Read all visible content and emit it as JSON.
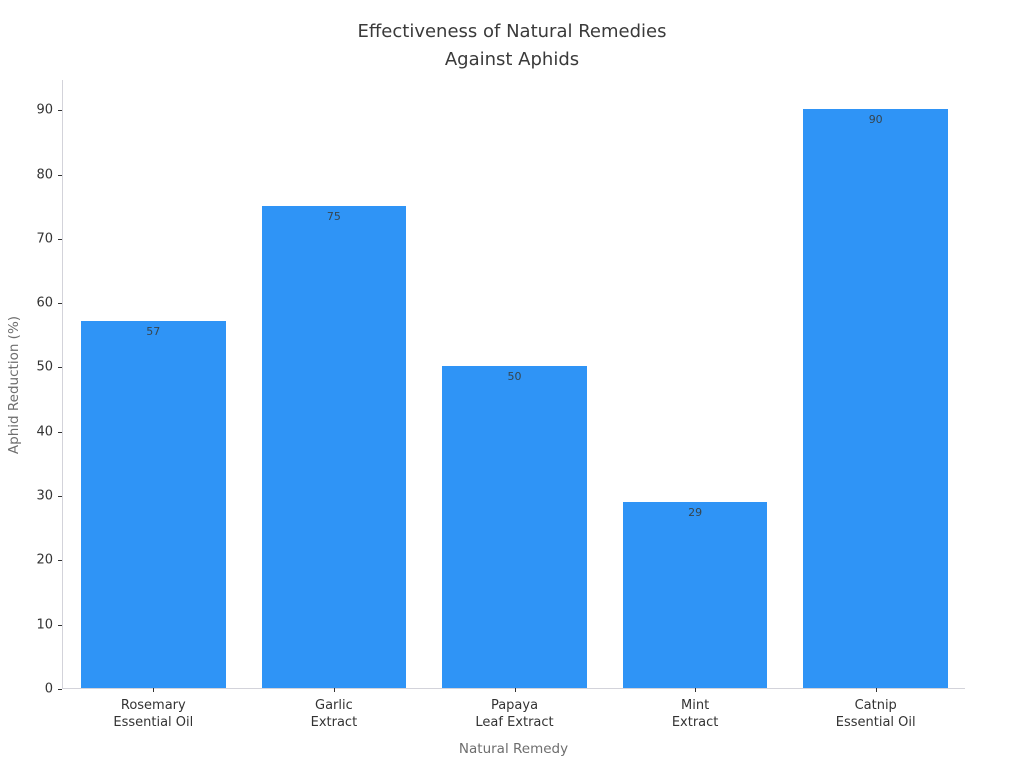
{
  "title": "Effectiveness of Natural Remedies\nAgainst Aphids",
  "chart_data": {
    "type": "bar",
    "title": "Effectiveness of Natural Remedies Against Aphids",
    "categories": [
      "Rosemary\nEssential Oil",
      "Garlic\nExtract",
      "Papaya\nLeaf Extract",
      "Mint\nExtract",
      "Catnip\nEssential Oil"
    ],
    "values": [
      57,
      75,
      50,
      29,
      90
    ],
    "value_labels": [
      "57",
      "75",
      "50",
      "29",
      "90"
    ],
    "xlabel": "Natural Remedy",
    "ylabel": "Aphid Reduction (%)",
    "ylim": [
      0,
      94.7
    ],
    "yticks": [
      0,
      10,
      20,
      30,
      40,
      50,
      60,
      70,
      80,
      90
    ],
    "bar_width_fraction": 0.8,
    "grid": false,
    "legend": false,
    "colors": {
      "bar": "#2f94f6",
      "value_label": "#36454f",
      "title": "#3a3a3a",
      "tick_label": "#333333",
      "axis_label": "#6e6e6e",
      "spine": "#d3d3da",
      "background": "#ffffff"
    }
  }
}
